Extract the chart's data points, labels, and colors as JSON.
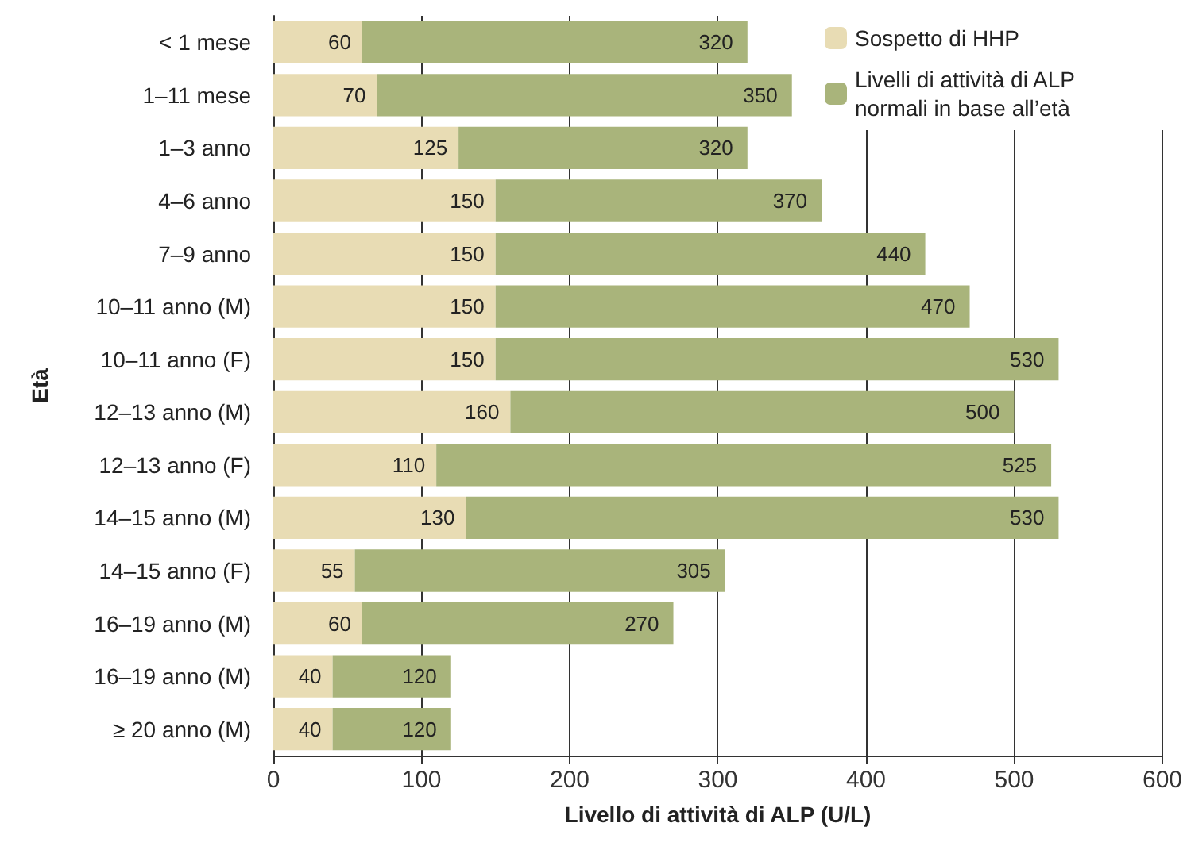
{
  "chart_data": {
    "type": "bar",
    "orientation": "horizontal",
    "stacked": true,
    "xlabel": "Livello di attività di ALP (U/L)",
    "ylabel": "Età",
    "categories": [
      "< 1 mese",
      "1–11 mese",
      "1–3 anno",
      "4–6 anno",
      "7–9 anno",
      "10–11 anno (M)",
      "10–11 anno (F)",
      "12–13 anno (M)",
      "12–13 anno (F)",
      "14–15 anno (M)",
      "14–15 anno (F)",
      "16–19 anno (M)",
      "16–19 anno (M)",
      "≥ 20 anno (M)"
    ],
    "series": [
      {
        "name": "Sospetto di HHP",
        "color": "#e8dcb4",
        "values": [
          60,
          70,
          125,
          150,
          150,
          150,
          150,
          160,
          110,
          130,
          55,
          60,
          40,
          40
        ],
        "value_labels": [
          "60",
          "70",
          "125",
          "150",
          "150",
          "150",
          "150",
          "160",
          "110",
          "130",
          "55",
          "60",
          "40",
          "40"
        ]
      },
      {
        "name": "Livelli di attività di ALP normali in base all’età",
        "color": "#a9b47b",
        "values": [
          260,
          280,
          195,
          220,
          290,
          320,
          380,
          340,
          415,
          400,
          250,
          210,
          80,
          80
        ]
      }
    ],
    "xlim": [
      0,
      600
    ],
    "xticks": [
      0,
      100,
      200,
      300,
      400,
      500,
      600
    ],
    "grid": "x",
    "totals": [
      "320",
      "350",
      "320",
      "370",
      "440",
      "470",
      "530",
      "500",
      "525",
      "530",
      "305",
      "270",
      "120",
      "120"
    ],
    "legend": "top right"
  }
}
